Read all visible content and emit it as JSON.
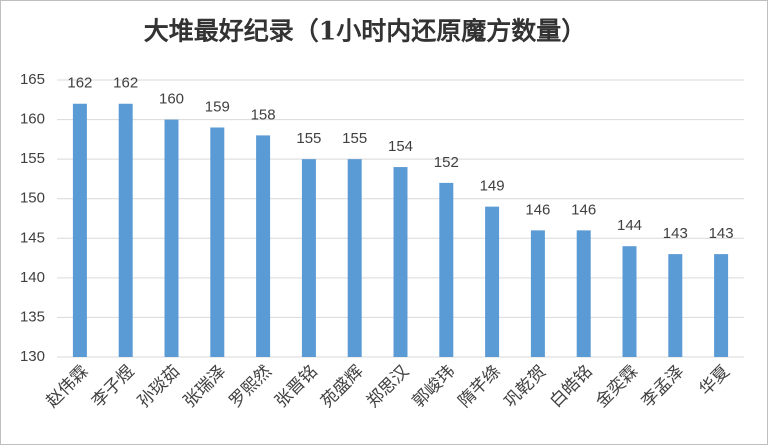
{
  "chart_data": {
    "type": "bar",
    "title": "大堆最好纪录（1小时内还原魔方数量）",
    "categories": [
      "赵伟霖",
      "李子煜",
      "孙琰茹",
      "张瑞泽",
      "罗熙然",
      "张晋铭",
      "苑盛辉",
      "郑思汉",
      "郭峻玮",
      "隋芊绦",
      "巩乾贺",
      "白皓铭",
      "金奕霖",
      "李孟泽",
      "华夏"
    ],
    "values": [
      162,
      162,
      160,
      159,
      158,
      155,
      155,
      154,
      152,
      149,
      146,
      146,
      144,
      143,
      143
    ],
    "color": "#5b9bd5",
    "ylim": [
      130,
      165
    ],
    "yticks": [
      130,
      135,
      140,
      145,
      150,
      155,
      160,
      165
    ],
    "grid": true
  }
}
